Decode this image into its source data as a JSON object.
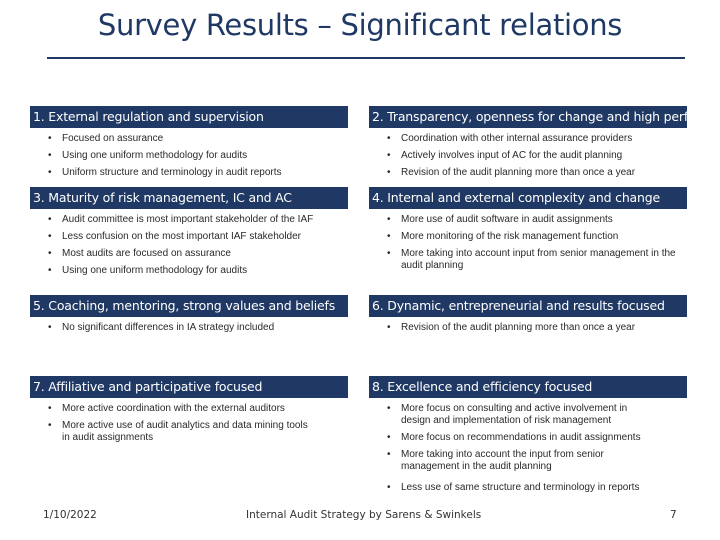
{
  "title": "Survey Results – Significant relations",
  "sections": [
    {
      "heading": "1. External regulation and supervision",
      "bullets": [
        "Focused on assurance",
        "Using one uniform methodology for audits",
        "Uniform structure and terminology in audit reports"
      ]
    },
    {
      "heading": "2. Transparency, openness for change and high perf.",
      "bullets": [
        "Coordination with other internal assurance providers",
        "Actively involves input of AC for the audit planning",
        "Revision of the audit planning more than once a year"
      ]
    },
    {
      "heading": "3. Maturity of risk management, IC and AC",
      "bullets": [
        "Audit committee is most important stakeholder of the IAF",
        "Less confusion on the most important IAF stakeholder",
        "Most audits are focused on assurance",
        "Using one uniform methodology for audits"
      ]
    },
    {
      "heading": "4. Internal and external complexity and change",
      "bullets": [
        "More use of audit software in audit assignments",
        "More monitoring of the risk management function",
        "More taking into account input from senior management in the audit planning"
      ]
    },
    {
      "heading": "5. Coaching, mentoring, strong values and beliefs",
      "bullets": [
        "No significant differences in IA strategy included"
      ]
    },
    {
      "heading": "6. Dynamic, entrepreneurial and results focused",
      "bullets": [
        "Revision of the audit planning more than once a year"
      ]
    },
    {
      "heading": "7. Affiliative and participative focused",
      "bullets": [
        "More active coordination with the external auditors",
        "More active use of audit analytics and data mining tools in audit assignments"
      ]
    },
    {
      "heading": "8. Excellence and efficiency focused",
      "bullets": [
        "More focus on consulting and active involvement in design and implementation of risk management",
        "More focus on recommendations in audit assignments",
        "More taking into account the input from senior management in the audit planning",
        "Less use of same structure and terminology in reports"
      ]
    }
  ],
  "bullet_char": "•",
  "footer": {
    "date": "1/10/2022",
    "source": "Internal Audit Strategy by Sarens & Swinkels",
    "page": "7"
  },
  "colors": {
    "header_bg": "#1f3864",
    "header_text": "#ffffff",
    "title": "#1f3864"
  }
}
